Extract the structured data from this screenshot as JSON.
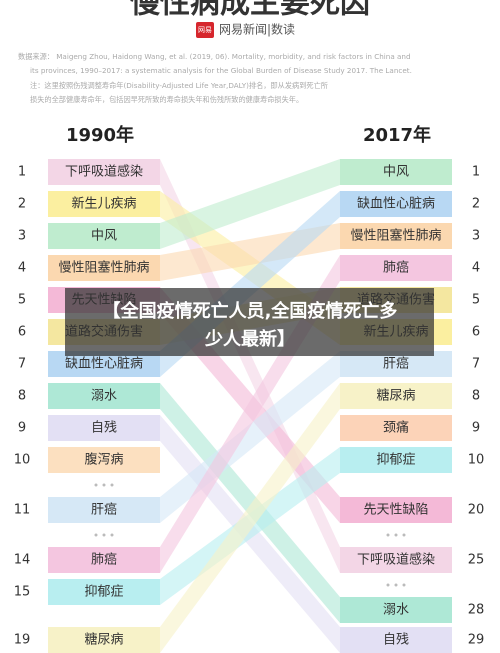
{
  "header": {
    "title": "慢性病成主要死因",
    "logo_badge": "网易",
    "logo_text": "网易新闻|数读"
  },
  "source": {
    "line1": "数据来源： Maigeng Zhou, Haidong Wang, et al. (2019, 06). Mortality, morbidity, and risk factors in China and",
    "line2": "its provinces, 1990–2017: a systematic analysis for the Global Burden of Disease Study 2017. The Lancet.",
    "line3": "注：这里按照伤残调整寿命年(Disability-Adjusted Life Year,DALY)排名，即从发病到死亡所",
    "line4": "损失的全部健康寿命年，包括因早死所致的寿命损失年和伤残所致的健康寿命损失年。"
  },
  "left": {
    "title": "1990年",
    "rows": [
      {
        "rank": 1,
        "label": "下呼吸道感染",
        "color": "#f3d6e6"
      },
      {
        "rank": 2,
        "label": "新生儿疾病",
        "color": "#fbefa0"
      },
      {
        "rank": 3,
        "label": "中风",
        "color": "#bfeccf"
      },
      {
        "rank": 4,
        "label": "慢性阻塞性肺病",
        "color": "#fbd8b0"
      },
      {
        "rank": 5,
        "label": "先天性缺陷",
        "color": "#f4b9d7"
      },
      {
        "rank": 6,
        "label": "道路交通伤害",
        "color": "#f4e7a0"
      },
      {
        "rank": 7,
        "label": "缺血性心脏病",
        "color": "#b8d8f3"
      },
      {
        "rank": 8,
        "label": "溺水",
        "color": "#aee8d6"
      },
      {
        "rank": 9,
        "label": "自残",
        "color": "#e3e0f4"
      },
      {
        "rank": 10,
        "label": "腹泻病",
        "color": "#fce0c0"
      },
      {
        "rank": 11,
        "label": "肝癌",
        "color": "#d6e8f6"
      },
      {
        "rank": 14,
        "label": "肺癌",
        "color": "#f4c6e0"
      },
      {
        "rank": 15,
        "label": "抑郁症",
        "color": "#b8eef0"
      },
      {
        "rank": 19,
        "label": "糖尿病",
        "color": "#f7f2c8"
      }
    ]
  },
  "right": {
    "title": "2017年",
    "rows": [
      {
        "rank": 1,
        "label": "中风",
        "color": "#bfeccf"
      },
      {
        "rank": 2,
        "label": "缺血性心脏病",
        "color": "#b8d8f3"
      },
      {
        "rank": 3,
        "label": "慢性阻塞性肺病",
        "color": "#fbd8b0"
      },
      {
        "rank": 4,
        "label": "肺癌",
        "color": "#f4c6e0"
      },
      {
        "rank": 5,
        "label": "道路交通伤害",
        "color": "#f4e7a0"
      },
      {
        "rank": 6,
        "label": "新生儿疾病",
        "color": "#fbefa0"
      },
      {
        "rank": 7,
        "label": "肝癌",
        "color": "#d6e8f6"
      },
      {
        "rank": 8,
        "label": "糖尿病",
        "color": "#f7f2c8"
      },
      {
        "rank": 9,
        "label": "颈痛",
        "color": "#fcd3b8"
      },
      {
        "rank": 10,
        "label": "抑郁症",
        "color": "#b8eef0"
      },
      {
        "rank": 20,
        "label": "先天性缺陷",
        "color": "#f4b9d7"
      },
      {
        "rank": 25,
        "label": "下呼吸道感染",
        "color": "#f3d6e6"
      },
      {
        "rank": 28,
        "label": "溺水",
        "color": "#aee8d6"
      },
      {
        "rank": 29,
        "label": "自残",
        "color": "#e3e0f4"
      }
    ]
  },
  "overlay": {
    "line1": "【全国疫情死亡人员,全国疫情死亡多",
    "line2": "少人最新】"
  }
}
